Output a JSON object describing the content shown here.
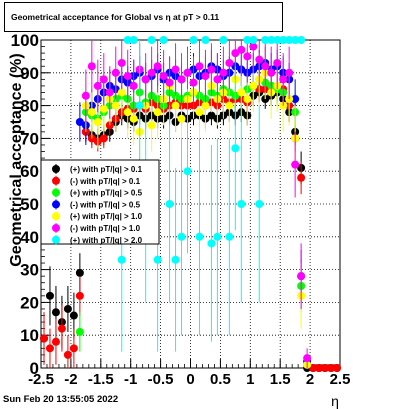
{
  "title": "Geometrical acceptance for Global vs   η at pT > 0.11",
  "footer": "Sun Feb 20 13:55:05 2022",
  "chart_data": {
    "type": "scatter",
    "xlabel": "η",
    "ylabel": "Geometrical acceptance (%)",
    "xlim": [
      -2.5,
      2.5
    ],
    "ylim": [
      0,
      100
    ],
    "x_ticks": [
      "-2.5",
      "-2",
      "-1.5",
      "-1",
      "-0.5",
      "0",
      "0.5",
      "1",
      "1.5",
      "2",
      "2.5"
    ],
    "y_ticks": [
      "0",
      "10",
      "20",
      "30",
      "40",
      "50",
      "60",
      "70",
      "80",
      "90",
      "100"
    ],
    "grid": true,
    "legend_position": "center-left",
    "series": [
      {
        "name": "(+) with pT/|q| > 0.1",
        "color": "#000000",
        "x": [
          -2.45,
          -2.35,
          -2.25,
          -2.15,
          -2.05,
          -1.95,
          -1.85,
          -1.75,
          -1.65,
          -1.55,
          -1.45,
          -1.35,
          -1.25,
          -1.15,
          -1.05,
          -0.95,
          -0.85,
          -0.75,
          -0.65,
          -0.55,
          -0.45,
          -0.35,
          -0.25,
          -0.15,
          -0.05,
          0.05,
          0.15,
          0.25,
          0.35,
          0.45,
          0.55,
          0.65,
          0.75,
          0.85,
          0.95,
          1.05,
          1.15,
          1.25,
          1.35,
          1.45,
          1.55,
          1.65,
          1.75,
          1.85,
          1.95,
          2.05,
          2.15,
          2.25,
          2.35,
          2.45
        ],
        "y": [
          9,
          22,
          17,
          14,
          18,
          16,
          29,
          72,
          71,
          70,
          71,
          72,
          75,
          77,
          76,
          75,
          77,
          76,
          77,
          76,
          76,
          77,
          75,
          77,
          76,
          77,
          77,
          76,
          77,
          76,
          77,
          78,
          77,
          78,
          77,
          83,
          84,
          82,
          83,
          84,
          82,
          78,
          72,
          61,
          0,
          0,
          0,
          0,
          0,
          0
        ],
        "yerr": [
          8,
          9,
          8,
          8,
          7,
          7,
          6,
          3,
          3,
          3,
          3,
          3,
          3,
          3,
          3,
          3,
          3,
          3,
          3,
          3,
          3,
          3,
          3,
          3,
          3,
          3,
          3,
          3,
          3,
          3,
          3,
          3,
          3,
          3,
          3,
          3,
          3,
          3,
          3,
          3,
          3,
          3,
          4,
          5,
          0,
          0,
          0,
          0,
          0,
          0
        ]
      },
      {
        "name": "(-) with pT/|q| > 0.1",
        "color": "#ff0000",
        "x": [
          -2.45,
          -2.35,
          -2.25,
          -2.15,
          -2.05,
          -1.95,
          -1.85,
          -1.75,
          -1.65,
          -1.55,
          -1.45,
          -1.35,
          -1.25,
          -1.15,
          -1.05,
          -0.95,
          -0.85,
          -0.75,
          -0.65,
          -0.55,
          -0.45,
          -0.35,
          -0.25,
          -0.15,
          -0.05,
          0.05,
          0.15,
          0.25,
          0.35,
          0.45,
          0.55,
          0.65,
          0.75,
          0.85,
          0.95,
          1.05,
          1.15,
          1.25,
          1.35,
          1.45,
          1.55,
          1.65,
          1.75,
          1.85,
          1.95,
          2.05,
          2.15,
          2.25,
          2.35,
          2.45
        ],
        "y": [
          9,
          6,
          8,
          12,
          4,
          6,
          22,
          72,
          70,
          69,
          70,
          74,
          76,
          78,
          79,
          79,
          80,
          79,
          81,
          80,
          79,
          80,
          81,
          80,
          80,
          80,
          81,
          80,
          81,
          80,
          82,
          81,
          82,
          82,
          81,
          86,
          85,
          85,
          86,
          85,
          85,
          80,
          70,
          58,
          1,
          0,
          0,
          0,
          0,
          0
        ],
        "yerr": [
          8,
          6,
          7,
          7,
          6,
          6,
          6,
          3,
          3,
          3,
          3,
          3,
          3,
          3,
          3,
          3,
          3,
          3,
          3,
          3,
          3,
          3,
          3,
          3,
          3,
          3,
          3,
          3,
          3,
          3,
          3,
          3,
          3,
          3,
          3,
          3,
          3,
          3,
          3,
          3,
          3,
          3,
          4,
          5,
          1,
          0,
          0,
          0,
          0,
          0
        ]
      },
      {
        "name": "(+) with pT/|q| > 0.5",
        "color": "#00ff00",
        "x": [
          -1.85,
          -1.75,
          -1.65,
          -1.55,
          -1.45,
          -1.35,
          -1.25,
          -1.15,
          -1.05,
          -0.95,
          -0.85,
          -0.75,
          -0.65,
          -0.55,
          -0.45,
          -0.35,
          -0.25,
          -0.15,
          -0.05,
          0.05,
          0.15,
          0.25,
          0.35,
          0.45,
          0.55,
          0.65,
          0.75,
          0.85,
          0.95,
          1.05,
          1.15,
          1.25,
          1.35,
          1.45,
          1.55,
          1.65,
          1.75,
          1.85,
          1.95
        ],
        "y": [
          11,
          78,
          77,
          76,
          78,
          80,
          82,
          83,
          82,
          80,
          84,
          81,
          83,
          82,
          80,
          84,
          83,
          82,
          83,
          84,
          83,
          82,
          84,
          83,
          85,
          84,
          83,
          84,
          85,
          86,
          88,
          87,
          86,
          85,
          84,
          82,
          78,
          25,
          1
        ],
        "yerr": [
          6,
          5,
          5,
          5,
          5,
          5,
          5,
          5,
          5,
          5,
          5,
          5,
          5,
          5,
          5,
          5,
          5,
          5,
          5,
          5,
          5,
          5,
          5,
          5,
          5,
          5,
          5,
          5,
          5,
          5,
          5,
          5,
          5,
          5,
          5,
          5,
          6,
          8,
          2
        ]
      },
      {
        "name": "(-) with pT/|q| > 0.5",
        "color": "#0000ff",
        "x": [
          -1.85,
          -1.75,
          -1.65,
          -1.55,
          -1.45,
          -1.35,
          -1.25,
          -1.15,
          -1.05,
          -0.95,
          -0.85,
          -0.75,
          -0.65,
          -0.55,
          -0.45,
          -0.35,
          -0.25,
          -0.15,
          -0.05,
          0.05,
          0.15,
          0.25,
          0.35,
          0.45,
          0.55,
          0.65,
          0.75,
          0.85,
          0.95,
          1.05,
          1.15,
          1.25,
          1.35,
          1.45,
          1.55,
          1.65,
          1.75,
          1.85,
          1.95
        ],
        "y": [
          75,
          74,
          80,
          82,
          84,
          86,
          85,
          88,
          87,
          89,
          90,
          88,
          89,
          91,
          88,
          90,
          89,
          88,
          90,
          91,
          89,
          90,
          92,
          91,
          89,
          90,
          92,
          91,
          90,
          91,
          92,
          93,
          91,
          92,
          90,
          88,
          82,
          28,
          2
        ],
        "yerr": [
          6,
          6,
          5,
          5,
          5,
          5,
          5,
          5,
          5,
          5,
          5,
          5,
          5,
          5,
          5,
          5,
          5,
          5,
          5,
          5,
          5,
          5,
          5,
          5,
          5,
          5,
          5,
          5,
          5,
          5,
          5,
          5,
          5,
          5,
          5,
          5,
          6,
          8,
          2
        ]
      },
      {
        "name": "(+) with pT/|q| > 1.0",
        "color": "#ffff00",
        "x": [
          -1.75,
          -1.65,
          -1.55,
          -1.45,
          -1.35,
          -1.25,
          -1.15,
          -1.05,
          -0.95,
          -0.85,
          -0.75,
          -0.65,
          -0.55,
          -0.45,
          -0.35,
          -0.25,
          -0.15,
          -0.05,
          0.05,
          0.15,
          0.25,
          0.35,
          0.45,
          0.55,
          0.65,
          0.75,
          0.85,
          0.95,
          1.05,
          1.15,
          1.25,
          1.35,
          1.45,
          1.55,
          1.65,
          1.75,
          1.85,
          1.95
        ],
        "y": [
          80,
          78,
          75,
          79,
          82,
          80,
          84,
          78,
          76,
          72,
          80,
          74,
          78,
          82,
          86,
          80,
          76,
          82,
          84,
          78,
          80,
          86,
          82,
          84,
          80,
          88,
          84,
          82,
          86,
          88,
          90,
          84,
          86,
          80,
          82,
          70,
          22,
          1
        ],
        "yerr": [
          8,
          8,
          8,
          8,
          8,
          8,
          8,
          8,
          8,
          8,
          8,
          8,
          8,
          8,
          8,
          8,
          8,
          8,
          8,
          8,
          8,
          8,
          8,
          8,
          8,
          8,
          8,
          8,
          8,
          8,
          8,
          8,
          8,
          8,
          8,
          10,
          10,
          2
        ]
      },
      {
        "name": "(-) with pT/|q| > 1.0",
        "color": "#ff00ff",
        "x": [
          -1.75,
          -1.65,
          -1.55,
          -1.45,
          -1.35,
          -1.25,
          -1.15,
          -1.05,
          -0.95,
          -0.85,
          -0.75,
          -0.65,
          -0.55,
          -0.45,
          -0.35,
          -0.25,
          -0.15,
          -0.05,
          0.05,
          0.15,
          0.25,
          0.35,
          0.45,
          0.55,
          0.65,
          0.75,
          0.85,
          0.95,
          1.05,
          1.15,
          1.25,
          1.35,
          1.45,
          1.55,
          1.65,
          1.75,
          1.85,
          1.95
        ],
        "y": [
          83,
          92,
          86,
          88,
          84,
          90,
          93,
          89,
          86,
          91,
          88,
          90,
          92,
          89,
          87,
          91,
          88,
          90,
          87,
          92,
          89,
          91,
          88,
          90,
          93,
          96,
          97,
          95,
          98,
          94,
          92,
          90,
          93,
          88,
          90,
          62,
          28,
          3
        ],
        "yerr": [
          8,
          8,
          8,
          8,
          8,
          8,
          8,
          8,
          8,
          8,
          8,
          8,
          8,
          8,
          8,
          8,
          8,
          8,
          8,
          8,
          8,
          8,
          8,
          8,
          8,
          8,
          8,
          8,
          8,
          8,
          8,
          8,
          8,
          8,
          8,
          10,
          10,
          3
        ]
      },
      {
        "name": "(+) with pT/|q| > 2.0",
        "color": "#00ffff",
        "x": [
          -1.15,
          -1.05,
          -0.95,
          -0.85,
          -0.75,
          -0.65,
          -0.55,
          -0.45,
          -0.35,
          -0.25,
          -0.15,
          -0.05,
          0.05,
          0.15,
          0.25,
          0.35,
          0.45,
          0.55,
          0.65,
          0.75,
          0.85,
          0.95,
          1.05,
          1.15,
          1.25,
          1.35,
          1.45,
          1.55,
          1.65,
          1.75,
          1.85
        ],
        "y": [
          33,
          100,
          100,
          80,
          50,
          100,
          33,
          100,
          50,
          33,
          40,
          60,
          100,
          40,
          100,
          38,
          40,
          100,
          40,
          67,
          50,
          100,
          100,
          50,
          100,
          100,
          100,
          100,
          100,
          100,
          100
        ],
        "yerr": [
          28,
          0,
          0,
          20,
          30,
          0,
          28,
          0,
          30,
          28,
          30,
          25,
          0,
          30,
          0,
          30,
          30,
          0,
          30,
          25,
          30,
          0,
          0,
          30,
          0,
          0,
          0,
          0,
          0,
          0,
          0
        ]
      }
    ]
  }
}
